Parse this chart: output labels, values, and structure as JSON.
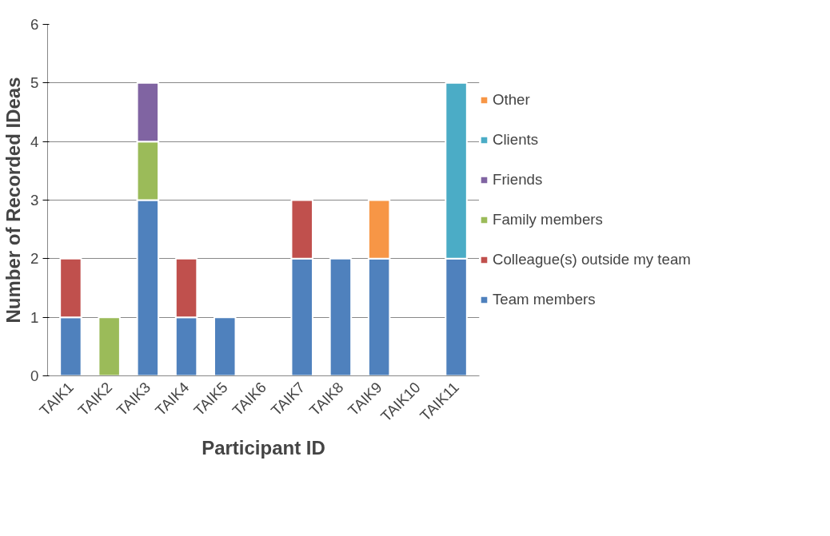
{
  "chart_data": {
    "type": "bar",
    "stacked": true,
    "xlabel": "Participant ID",
    "ylabel": "Number of Recorded IDeas",
    "categories": [
      "TAIK1",
      "TAIK2",
      "TAIK3",
      "TAIK4",
      "TAIK5",
      "TAIK6",
      "TAIK7",
      "TAIK8",
      "TAIK9",
      "TAIK10",
      "TAIK11"
    ],
    "series": [
      {
        "name": "Team members",
        "color": "#4f81bd",
        "values": [
          1,
          0,
          3,
          1,
          1,
          0,
          2,
          2,
          2,
          0,
          2
        ]
      },
      {
        "name": "Colleague(s) outside my team",
        "color": "#c0504d",
        "values": [
          1,
          0,
          0,
          1,
          0,
          0,
          1,
          0,
          0,
          0,
          0
        ]
      },
      {
        "name": "Family members",
        "color": "#9bbb59",
        "values": [
          0,
          1,
          1,
          0,
          0,
          0,
          0,
          0,
          0,
          0,
          0
        ]
      },
      {
        "name": "Friends",
        "color": "#8064a2",
        "values": [
          0,
          0,
          1,
          0,
          0,
          0,
          0,
          0,
          0,
          0,
          0
        ]
      },
      {
        "name": "Clients",
        "color": "#4bacc6",
        "values": [
          0,
          0,
          0,
          0,
          0,
          0,
          0,
          0,
          0,
          0,
          3
        ]
      },
      {
        "name": "Other",
        "color": "#f79646",
        "values": [
          0,
          0,
          0,
          0,
          0,
          0,
          0,
          0,
          1,
          0,
          0
        ]
      }
    ],
    "ylim": [
      0,
      6
    ],
    "yticks": [
      0,
      1,
      2,
      3,
      4,
      5,
      6
    ],
    "grid": "y",
    "legend": "right"
  }
}
